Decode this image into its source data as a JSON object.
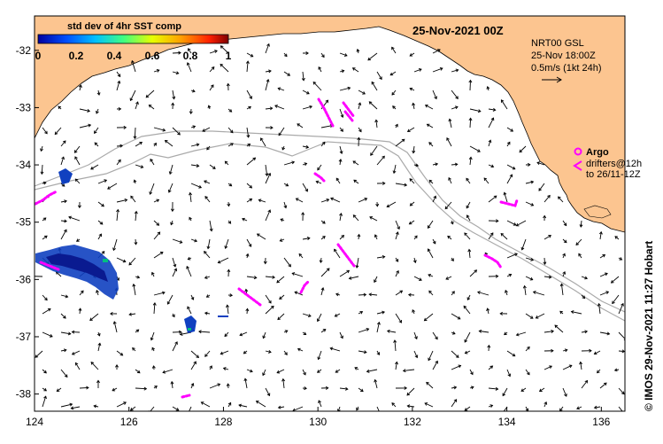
{
  "map": {
    "date_title": "25-Nov-2021 00Z",
    "colorbar": {
      "title": "std dev of 4hr SST comp",
      "ticks": [
        "0",
        "0.2",
        "0.4",
        "0.6",
        "0.8",
        "1"
      ],
      "colors": [
        "#0000a0",
        "#0050ff",
        "#00c0ff",
        "#40ff80",
        "#e8ff00",
        "#ffa000",
        "#ff2000",
        "#800000"
      ]
    },
    "current_legend": {
      "line1": "NRT00 GSL",
      "line2": "25-Nov 18:00Z",
      "line3": "0.5m/s (1kt 24h)"
    },
    "argo_legend": {
      "argo_label": "Argo",
      "drifters_line1": "drifters@12h",
      "drifters_line2": "to 26/11-12Z",
      "argo_color": "#ff00ff"
    },
    "credit": "© IMOS 29-Nov-2021 11:27 Hobart",
    "axes": {
      "lon_ticks": [
        "124",
        "126",
        "128",
        "130",
        "132",
        "134",
        "136"
      ],
      "lat_ticks": [
        "-32",
        "-33",
        "-34",
        "-35",
        "-36",
        "-37",
        "-38"
      ],
      "lon_range": [
        124,
        136.5
      ],
      "lat_range": [
        -31.4,
        -38.3
      ]
    },
    "colors": {
      "land": "#fcc590",
      "sea": "#ffffff",
      "isobath": "#aaaaaa",
      "arrow": "#000000"
    }
  }
}
